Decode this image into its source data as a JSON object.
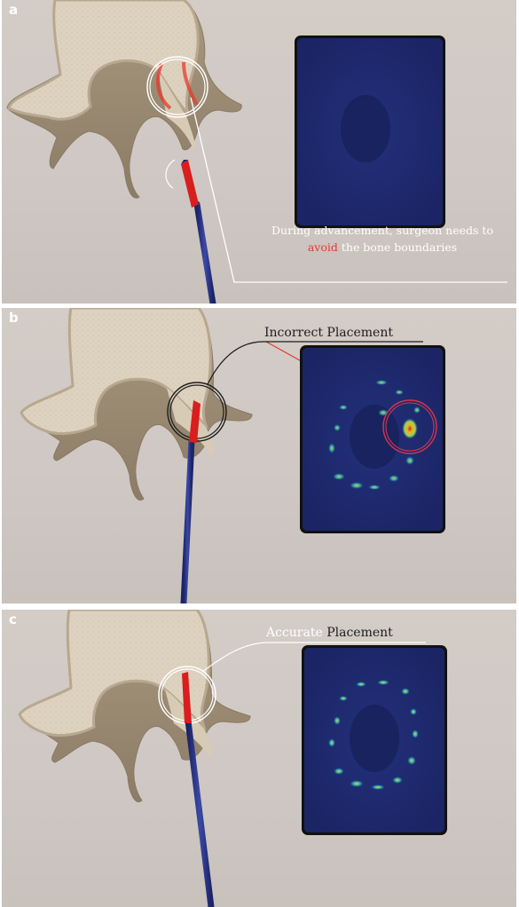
{
  "colors": {
    "background": "#d1cac6",
    "bone": "#ddd1bd",
    "bone_shadow": "#a8957b",
    "probe_shaft": "#2e3a8a",
    "probe_tip": "#d81e1e",
    "screen_bg": "#1e2a6e",
    "warning_red": "#e5392f",
    "label_dark": "#1d1d1d"
  },
  "panels": [
    {
      "letter": "a",
      "caption_line1": "During advancement, surgeon needs to",
      "caption_word_red": "avoid",
      "caption_line2_rest": " the bone boundaries"
    },
    {
      "letter": "b",
      "label": "Incorrect Placement"
    },
    {
      "letter": "c",
      "label_part1": "Accurate",
      "label_part2": " Placement"
    }
  ]
}
